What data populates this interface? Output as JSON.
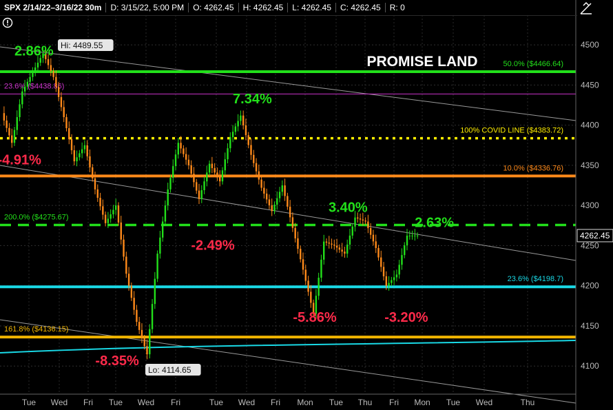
{
  "header": {
    "symbol": "SPX 2/14/22–3/16/22 30m",
    "date": "D: 3/15/22, 5:00 PM",
    "open": "O: 4262.45",
    "high": "H: 4262.45",
    "low": "L: 4262.45",
    "close": "C: 4262.45",
    "range": "R: 0"
  },
  "icons": {
    "alert": "alert-icon",
    "draw": "draw-tool-icon"
  },
  "chart_data": {
    "type": "candlestick",
    "instrument": "SPX",
    "interval": "30m",
    "ylim": [
      4065,
      4515
    ],
    "y_ticks": [
      "4500",
      "4450",
      "4400",
      "4350",
      "4300",
      "4250",
      "4200",
      "4150",
      "4100"
    ],
    "x_labels": [
      "Tue",
      "Wed",
      "Fri",
      "Tue",
      "Wed",
      "Fri",
      "Tue",
      "Wed",
      "Fri",
      "Mon",
      "Tue",
      "Thu",
      "Fri",
      "Mon",
      "Tue",
      "Wed",
      "Thu"
    ],
    "last_price": "4262.45",
    "hi_label": "Hi: 4489.55",
    "lo_label": "Lo: 4114.65",
    "title_annotation": "PROMISE LAND",
    "price_path": [
      [
        0,
        4415
      ],
      [
        1,
        4378
      ],
      [
        2,
        4442
      ],
      [
        3,
        4466
      ],
      [
        4,
        4489.55
      ],
      [
        5,
        4460
      ],
      [
        6,
        4410
      ],
      [
        7,
        4355
      ],
      [
        8,
        4375
      ],
      [
        9,
        4320
      ],
      [
        10,
        4278
      ],
      [
        11,
        4300
      ],
      [
        12,
        4215
      ],
      [
        13,
        4155
      ],
      [
        14,
        4114.65
      ],
      [
        15,
        4240
      ],
      [
        16,
        4320
      ],
      [
        17,
        4378
      ],
      [
        18,
        4350
      ],
      [
        19,
        4308
      ],
      [
        20,
        4352
      ],
      [
        21,
        4330
      ],
      [
        22,
        4385
      ],
      [
        23,
        4412
      ],
      [
        24,
        4363
      ],
      [
        25,
        4322
      ],
      [
        26,
        4293
      ],
      [
        27,
        4325
      ],
      [
        28,
        4272
      ],
      [
        29,
        4220
      ],
      [
        30,
        4165
      ],
      [
        31,
        4255
      ],
      [
        32,
        4250
      ],
      [
        33,
        4240
      ],
      [
        34,
        4285
      ],
      [
        35,
        4280
      ],
      [
        36,
        4247
      ],
      [
        37,
        4200
      ],
      [
        38,
        4214
      ],
      [
        39,
        4262.45
      ],
      [
        40,
        4262.45
      ]
    ],
    "levels": [
      {
        "label": "50.0%  ($4466.64)",
        "value": 4466.64,
        "color": "#22e01a",
        "style": "solid"
      },
      {
        "label": "23.6%  ($4438.86)",
        "value": 4438.86,
        "color": "#cc33cc",
        "style": "thin"
      },
      {
        "label": "100% COVID LINE  ($4383.72)",
        "value": 4383.72,
        "color": "#ffee00",
        "style": "dotted"
      },
      {
        "label": "10.0%  ($4336.76)",
        "value": 4336.76,
        "color": "#ff8a1a",
        "style": "solid"
      },
      {
        "label": "200.0%  ($4275.67)",
        "value": 4275.67,
        "color": "#22e01a",
        "style": "dashed"
      },
      {
        "label": "23.6%  ($4198.7)",
        "value": 4198.7,
        "color": "#19d9e6",
        "style": "solid"
      },
      {
        "label": "161.8%  ($4136.15)",
        "value": 4136.15,
        "color": "#f0b400",
        "style": "solid"
      }
    ],
    "annotations": [
      {
        "text": "2.86%",
        "color": "#22e01a",
        "x": 3,
        "y": 4487
      },
      {
        "text": "-4.91%",
        "color": "#ff2a4a",
        "x": 1.6,
        "y": 4351
      },
      {
        "text": "7.34%",
        "color": "#22e01a",
        "x": 24,
        "y": 4427
      },
      {
        "text": "-2.49%",
        "color": "#ff2a4a",
        "x": 20.2,
        "y": 4245
      },
      {
        "text": "3.40%",
        "color": "#22e01a",
        "x": 33.2,
        "y": 4292
      },
      {
        "text": "2.63%",
        "color": "#22e01a",
        "x": 41.5,
        "y": 4273
      },
      {
        "text": "-5.86%",
        "color": "#ff2a4a",
        "x": 30,
        "y": 4155
      },
      {
        "text": "-3.20%",
        "color": "#ff2a4a",
        "x": 38.8,
        "y": 4155
      },
      {
        "text": "-8.35%",
        "color": "#ff2a4a",
        "x": 11,
        "y": 4101
      }
    ],
    "grid": true
  }
}
